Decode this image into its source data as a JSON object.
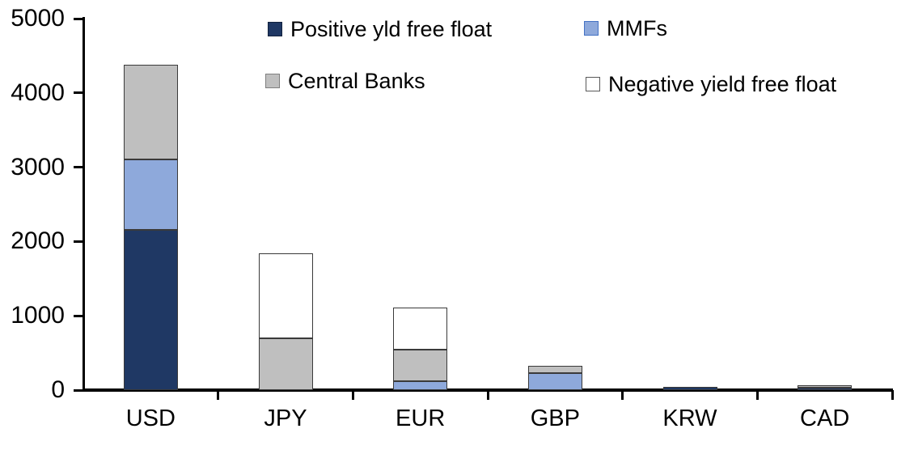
{
  "chart_data": {
    "type": "bar",
    "stacked": true,
    "title": "",
    "xlabel": "",
    "ylabel": "",
    "categories": [
      "USD",
      "JPY",
      "EUR",
      "GBP",
      "KRW",
      "CAD"
    ],
    "series": [
      {
        "name": "Positive yld free float",
        "color": "#1F3864",
        "values": [
          2160,
          0,
          0,
          0,
          45,
          30
        ]
      },
      {
        "name": "MMFs",
        "color": "#8EA9DB",
        "values": [
          940,
          0,
          120,
          225,
          0,
          0
        ]
      },
      {
        "name": "Central Banks",
        "color": "#BFBFBF",
        "values": [
          1280,
          700,
          425,
          105,
          0,
          40
        ]
      },
      {
        "name": "Negative yield free float",
        "color": "#FFFFFF",
        "values": [
          0,
          1140,
          565,
          0,
          0,
          0
        ]
      }
    ],
    "totals": [
      4380,
      1840,
      1110,
      330,
      45,
      70
    ],
    "ylim": [
      0,
      5000
    ],
    "yticks": [
      0,
      1000,
      2000,
      3000,
      4000,
      5000
    ],
    "grid": false,
    "legend_position": "top"
  },
  "legend": {
    "items": [
      {
        "label": "Positive yld free float",
        "color": "#1F3864"
      },
      {
        "label": "MMFs",
        "color": "#8EA9DB"
      },
      {
        "label": "Central Banks",
        "color": "#BFBFBF"
      },
      {
        "label": "Negative yield free float",
        "color": "#FFFFFF"
      }
    ]
  },
  "colors": {
    "axis": "#000000",
    "segment_border": "#3a3a3a",
    "background": "#FFFFFF"
  }
}
